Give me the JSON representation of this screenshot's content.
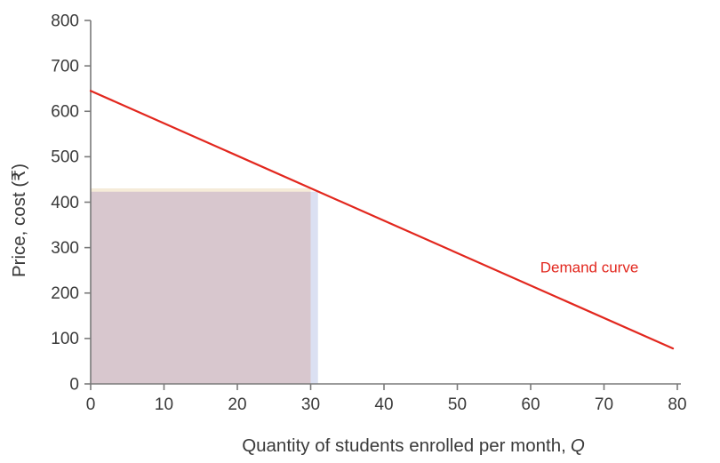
{
  "figure": {
    "background": "#ffffff"
  },
  "chart_data": {
    "type": "line",
    "title": "",
    "xlabel": "Quantity of students enrolled per month,",
    "xlabel_var": "Q",
    "ylabel": "Price, cost (₹)",
    "xlim": [
      0,
      80
    ],
    "ylim": [
      0,
      800
    ],
    "x_ticks": [
      0,
      10,
      20,
      30,
      40,
      50,
      60,
      70,
      80
    ],
    "y_ticks": [
      0,
      100,
      200,
      300,
      400,
      500,
      600,
      700,
      800
    ],
    "grid": "off",
    "legend": "none",
    "axis_color": "#7a7a7a",
    "tick_label_color": "#3a3a3a",
    "series": [
      {
        "name": "Demand curve",
        "x": [
          0,
          79.4
        ],
        "y": [
          645,
          78
        ],
        "color": "#e2271e",
        "width": 2.2
      }
    ],
    "annotations": [
      {
        "text": "Demand curve",
        "x": 61.3,
        "y": 257,
        "color": "#e2271e",
        "font_size": 17
      }
    ],
    "shaded_regions": [
      {
        "name": "revenue-rectangle",
        "x": [
          0,
          30
        ],
        "y": [
          0,
          430
        ],
        "color": "#d8c7ce"
      },
      {
        "name": "price-reduction-strip",
        "x": [
          0,
          30
        ],
        "y": [
          423,
          430
        ],
        "color": "#f6ecd8"
      },
      {
        "name": "marginal-quantity-strip",
        "x": [
          30,
          31
        ],
        "y": [
          0,
          423
        ],
        "color": "#dbe0f2"
      }
    ],
    "key_points": {
      "price_initial": 430,
      "price_new": 423,
      "quantity_initial": 30,
      "quantity_new": 31,
      "demand_intercept_price": 645,
      "demand_slope_per_unit": -7.1
    }
  }
}
